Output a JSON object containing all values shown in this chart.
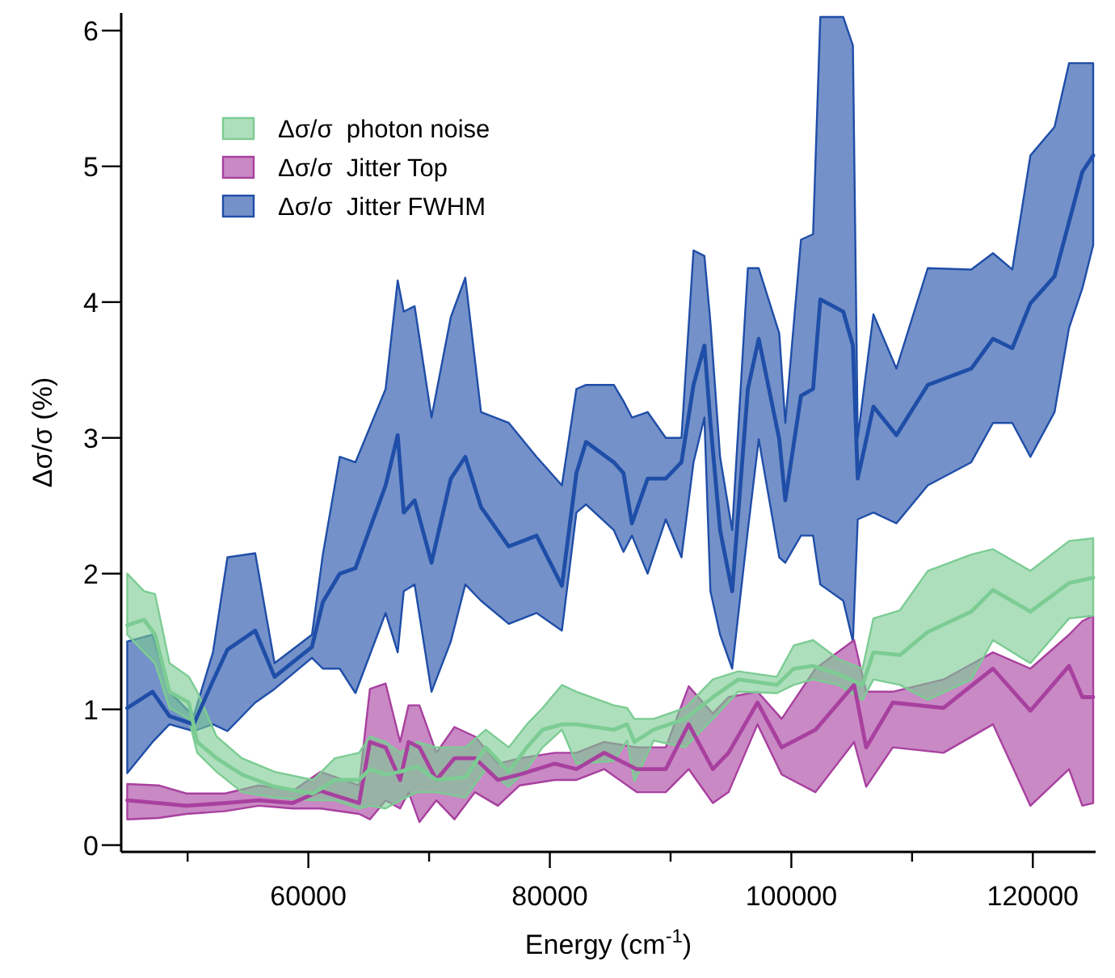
{
  "chart_data": {
    "type": "line",
    "xlabel": "Energy (cm$^{-1}$)",
    "ylabel": "Δσ/σ (%)",
    "xlim": [
      44500,
      125200
    ],
    "ylim": [
      -0.05,
      6.13
    ],
    "xticks": [
      {
        "value": 50000,
        "label": null
      },
      60000,
      {
        "value": 70000,
        "label": null
      },
      80000,
      {
        "value": 90000,
        "label": null
      },
      100000,
      {
        "value": 110000,
        "label": null
      },
      120000
    ],
    "yticks": [
      0,
      1,
      2,
      3,
      4,
      5,
      6
    ],
    "grid": false,
    "legend": "top left",
    "marker": "none",
    "line_style": "solid",
    "series": [
      {
        "name": "Δσ/σ  photon noise",
        "color": "#7ccc93",
        "x": [
          45000,
          46400,
          47300,
          48500,
          50100,
          50800,
          52400,
          54500,
          57200,
          60400,
          62200,
          64200,
          65100,
          66400,
          67600,
          69000,
          70600,
          73000,
          74700,
          76600,
          78100,
          79400,
          81000,
          82200,
          85300,
          86400,
          87000,
          88600,
          91200,
          93500,
          95600,
          98800,
          100200,
          101800,
          103900,
          105900,
          106800,
          109000,
          111300,
          114900,
          116700,
          119800,
          123000,
          125000
        ],
        "values": [
          1.62,
          1.66,
          1.55,
          1.13,
          1.05,
          0.76,
          0.64,
          0.52,
          0.43,
          0.38,
          0.48,
          0.48,
          0.56,
          0.52,
          0.54,
          0.58,
          0.48,
          0.5,
          0.72,
          0.54,
          0.72,
          0.85,
          0.89,
          0.89,
          0.85,
          0.89,
          0.76,
          0.85,
          0.93,
          1.09,
          1.22,
          1.18,
          1.3,
          1.32,
          1.26,
          1.18,
          1.42,
          1.4,
          1.57,
          1.72,
          1.88,
          1.72,
          1.93,
          1.97
        ],
        "lower": [
          1.55,
          1.42,
          1.34,
          1.01,
          0.93,
          0.68,
          0.54,
          0.39,
          0.35,
          0.33,
          0.33,
          0.27,
          0.29,
          0.27,
          0.33,
          0.39,
          0.39,
          0.35,
          0.56,
          0.43,
          0.56,
          0.72,
          0.85,
          0.6,
          0.62,
          0.77,
          0.47,
          0.77,
          0.72,
          0.93,
          1.13,
          1.12,
          1.18,
          1.22,
          1.18,
          1.07,
          1.22,
          1.18,
          1.07,
          1.22,
          1.51,
          1.34,
          1.67,
          1.69
        ],
        "upper": [
          2.0,
          1.87,
          1.85,
          1.34,
          1.24,
          1.13,
          0.8,
          0.64,
          0.54,
          0.48,
          0.64,
          0.68,
          0.8,
          0.76,
          0.68,
          0.76,
          0.72,
          0.72,
          0.85,
          0.72,
          0.89,
          1.01,
          1.18,
          1.13,
          1.03,
          1.01,
          0.93,
          0.93,
          1.01,
          1.22,
          1.28,
          1.24,
          1.47,
          1.51,
          1.37,
          1.3,
          1.67,
          1.73,
          2.02,
          2.14,
          2.18,
          2.02,
          2.24,
          2.26
        ]
      },
      {
        "name": "Δσ/σ  Jitter Top",
        "color": "#a8409f",
        "x": [
          45000,
          47600,
          49900,
          53100,
          55900,
          58700,
          61000,
          64200,
          65100,
          66400,
          67600,
          68300,
          69200,
          70600,
          72100,
          73800,
          75700,
          77500,
          80400,
          82200,
          84500,
          87200,
          89600,
          91500,
          93500,
          94800,
          97200,
          99200,
          102000,
          105200,
          106200,
          108400,
          112600,
          116700,
          119800,
          123000,
          124100,
          125000
        ],
        "values": [
          0.33,
          0.31,
          0.29,
          0.31,
          0.33,
          0.31,
          0.4,
          0.31,
          0.76,
          0.72,
          0.48,
          0.76,
          0.72,
          0.48,
          0.64,
          0.64,
          0.48,
          0.52,
          0.6,
          0.56,
          0.68,
          0.56,
          0.56,
          0.89,
          0.56,
          0.68,
          1.05,
          0.72,
          0.85,
          1.18,
          0.72,
          1.05,
          1.01,
          1.3,
          0.99,
          1.32,
          1.09,
          1.09
        ],
        "lower": [
          0.19,
          0.2,
          0.23,
          0.25,
          0.29,
          0.27,
          0.27,
          0.23,
          0.19,
          0.33,
          0.27,
          0.39,
          0.17,
          0.33,
          0.19,
          0.39,
          0.29,
          0.44,
          0.48,
          0.48,
          0.56,
          0.39,
          0.39,
          0.56,
          0.31,
          0.39,
          0.89,
          0.52,
          0.39,
          0.76,
          0.43,
          0.72,
          0.68,
          0.89,
          0.29,
          0.56,
          0.29,
          0.31
        ],
        "upper": [
          0.45,
          0.44,
          0.38,
          0.38,
          0.44,
          0.4,
          0.54,
          0.44,
          1.15,
          1.19,
          0.76,
          1.03,
          1.03,
          0.68,
          0.87,
          0.8,
          0.6,
          0.64,
          0.68,
          0.68,
          0.76,
          0.72,
          0.72,
          1.17,
          0.97,
          1.09,
          1.13,
          0.93,
          1.3,
          1.51,
          1.13,
          1.13,
          1.22,
          1.42,
          1.3,
          1.55,
          1.65,
          1.69
        ]
      },
      {
        "name": "Δσ/σ  Jitter FWHM",
        "color": "#1f4ea8",
        "x": [
          45000,
          47100,
          48500,
          50500,
          52100,
          53300,
          55600,
          57200,
          60300,
          61200,
          62600,
          63900,
          66400,
          67400,
          67900,
          68800,
          70200,
          71800,
          73000,
          74300,
          76600,
          78900,
          81000,
          82200,
          83000,
          85300,
          86100,
          86800,
          88100,
          89600,
          90900,
          91900,
          92800,
          93300,
          94100,
          95100,
          96400,
          97300,
          99000,
          99500,
          100800,
          101800,
          102400,
          104300,
          105100,
          105500,
          106800,
          108700,
          111300,
          114900,
          116700,
          118300,
          119800,
          121800,
          123000,
          124100,
          125000
        ],
        "values": [
          1.01,
          1.13,
          0.95,
          0.89,
          1.21,
          1.44,
          1.58,
          1.24,
          1.46,
          1.79,
          2.0,
          2.04,
          2.65,
          3.02,
          2.45,
          2.54,
          2.08,
          2.7,
          2.86,
          2.49,
          2.2,
          2.28,
          1.91,
          2.74,
          2.97,
          2.82,
          2.74,
          2.37,
          2.7,
          2.7,
          2.82,
          3.39,
          3.68,
          3.11,
          2.32,
          1.87,
          3.36,
          3.73,
          2.99,
          2.54,
          3.31,
          3.36,
          4.02,
          3.93,
          3.68,
          2.7,
          3.23,
          3.02,
          3.39,
          3.51,
          3.73,
          3.66,
          3.99,
          4.19,
          4.59,
          4.96,
          5.08
        ],
        "lower": [
          0.53,
          0.76,
          0.89,
          0.84,
          0.89,
          0.84,
          1.05,
          1.15,
          1.38,
          1.3,
          1.3,
          1.12,
          1.71,
          1.42,
          1.87,
          1.92,
          1.13,
          1.5,
          1.92,
          1.8,
          1.63,
          1.71,
          1.58,
          2.45,
          2.51,
          2.32,
          2.16,
          2.28,
          2.0,
          2.4,
          2.12,
          2.82,
          3.15,
          1.87,
          1.55,
          1.3,
          2.32,
          2.99,
          2.12,
          2.08,
          2.28,
          2.28,
          1.92,
          1.8,
          1.5,
          2.4,
          2.45,
          2.37,
          2.65,
          2.82,
          3.11,
          3.11,
          2.86,
          3.19,
          3.81,
          4.1,
          4.42
        ],
        "upper": [
          1.5,
          1.55,
          1.13,
          0.95,
          1.42,
          2.12,
          2.15,
          1.34,
          1.55,
          2.14,
          2.86,
          2.82,
          3.36,
          4.16,
          3.93,
          3.97,
          3.15,
          3.89,
          4.18,
          3.19,
          3.11,
          2.86,
          2.65,
          3.36,
          3.39,
          3.39,
          3.27,
          3.15,
          3.19,
          3.0,
          3.0,
          4.38,
          4.34,
          3.85,
          2.86,
          2.32,
          4.25,
          4.25,
          3.77,
          3.11,
          4.46,
          4.5,
          6.1,
          6.1,
          5.89,
          3.0,
          3.91,
          3.51,
          4.25,
          4.24,
          4.36,
          4.24,
          5.08,
          5.29,
          5.76,
          5.76,
          5.76
        ]
      }
    ]
  }
}
